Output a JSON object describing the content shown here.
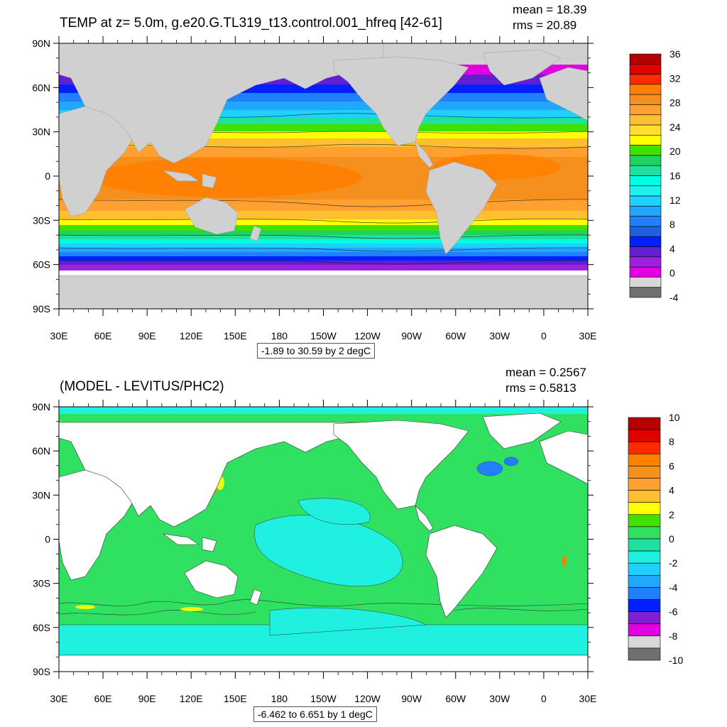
{
  "panels": [
    {
      "title": "TEMP at z=   5.0m, g.e20.G.TL319_t13.control.001_hfreq [42-61]",
      "mean": "mean = 18.39",
      "rms": "rms = 20.89",
      "range_info": "-1.89 to 30.59 by 2 degC",
      "lat_labels": [
        "90N",
        "60N",
        "30N",
        "0",
        "30S",
        "60S",
        "90S"
      ],
      "lon_labels": [
        "30E",
        "60E",
        "90E",
        "120E",
        "150E",
        "180",
        "150W",
        "120W",
        "90W",
        "60W",
        "30W",
        "0",
        "30E"
      ],
      "colorbar": {
        "labels": [
          "36",
          "32",
          "28",
          "24",
          "20",
          "16",
          "12",
          "8",
          "4",
          "0",
          "-4"
        ],
        "colors": [
          "#b40000",
          "#e00000",
          "#ff2a00",
          "#ff8000",
          "#f5901e",
          "#ffa030",
          "#ffc030",
          "#ffe030",
          "#ffff00",
          "#40e000",
          "#20d060",
          "#20e0a0",
          "#00ffe0",
          "#20f0f0",
          "#20d0ff",
          "#20a8ff",
          "#2080ff",
          "#2060e0",
          "#0020ff",
          "#6020d0",
          "#a020e0",
          "#e000e0",
          "#d8d8d8",
          "#707070"
        ],
        "land_color": "#d0d0d0"
      }
    },
    {
      "title": "(MODEL - LEVITUS/PHC2)",
      "mean": "mean = 0.2567",
      "rms": "rms = 0.5813",
      "range_info": "-6.462 to 6.651 by 1 degC",
      "lat_labels": [
        "90N",
        "60N",
        "30N",
        "0",
        "30S",
        "60S",
        "90S"
      ],
      "lon_labels": [
        "30E",
        "60E",
        "90E",
        "120E",
        "150E",
        "180",
        "150W",
        "120W",
        "90W",
        "60W",
        "30W",
        "0",
        "30E"
      ],
      "colorbar": {
        "labels": [
          "10",
          "8",
          "6",
          "4",
          "2",
          "0",
          "-2",
          "-4",
          "-6",
          "-8",
          "-10"
        ],
        "colors": [
          "#b40000",
          "#e00000",
          "#ff2a00",
          "#ff8000",
          "#f5901e",
          "#ffa030",
          "#ffc030",
          "#ffff00",
          "#40e000",
          "#30e060",
          "#20e0a0",
          "#20f0e0",
          "#20d0ff",
          "#20a8ff",
          "#2080ff",
          "#0020ff",
          "#8020d0",
          "#e000e0",
          "#d8d8d8",
          "#707070"
        ],
        "land_color": "#ffffff"
      }
    }
  ]
}
